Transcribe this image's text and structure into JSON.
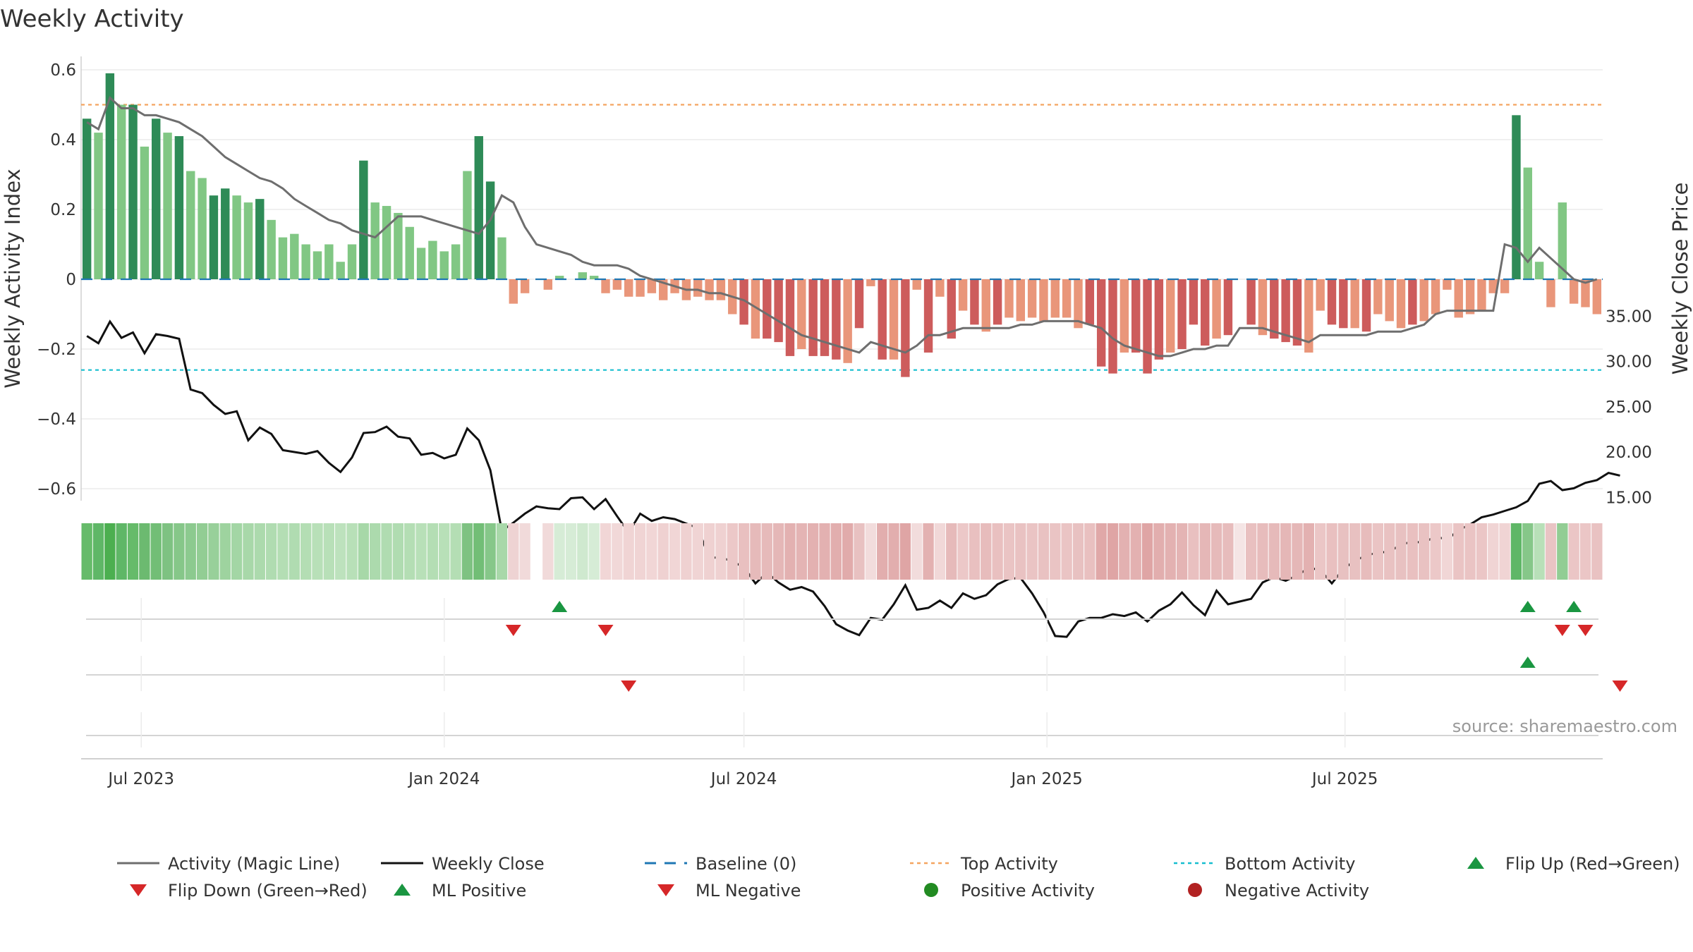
{
  "chart_data": {
    "type": "bar",
    "title": "Weekly Activity",
    "source": "source: sharemaestro.com",
    "y_left": {
      "label": "Weekly Activity Index",
      "range": [
        -0.64,
        0.62
      ],
      "ticks": [
        -0.6,
        -0.4,
        -0.2,
        0,
        0.2,
        0.4,
        0.6
      ],
      "tick_labels": [
        "−0.6",
        "−0.4",
        "−0.2",
        "0",
        "0.2",
        "0.4",
        "0.6"
      ]
    },
    "y_right": {
      "label": "Weekly Close Price",
      "range": [
        11.5,
        35.5
      ],
      "ticks": [
        15,
        20,
        25,
        30,
        35
      ],
      "tick_labels": [
        "15.00",
        "20.00",
        "25.00",
        "30.00",
        "35.00"
      ]
    },
    "x_ticks": [
      {
        "date": "2023-07-01",
        "label": "Jul 2023"
      },
      {
        "date": "2024-01-01",
        "label": "Jan 2024"
      },
      {
        "date": "2024-07-01",
        "label": "Jul 2024"
      },
      {
        "date": "2025-01-01",
        "label": "Jan 2025"
      },
      {
        "date": "2025-07-01",
        "label": "Jul 2025"
      }
    ],
    "first_week": "2023-05-29",
    "levels": {
      "baseline": 0,
      "top": 0.5,
      "bottom": -0.26
    },
    "activity": [
      0.46,
      0.42,
      0.59,
      0.5,
      0.5,
      0.38,
      0.46,
      0.42,
      0.41,
      0.31,
      0.29,
      0.24,
      0.26,
      0.24,
      0.22,
      0.23,
      0.17,
      0.12,
      0.13,
      0.1,
      0.08,
      0.1,
      0.05,
      0.1,
      0.34,
      0.22,
      0.21,
      0.19,
      0.15,
      0.09,
      0.11,
      0.08,
      0.1,
      0.31,
      0.41,
      0.28,
      0.12,
      -0.07,
      -0.04,
      0,
      -0.03,
      0.01,
      0,
      0.02,
      0.01,
      -0.04,
      -0.03,
      -0.05,
      -0.05,
      -0.04,
      -0.06,
      -0.04,
      -0.06,
      -0.05,
      -0.06,
      -0.06,
      -0.1,
      -0.13,
      -0.17,
      -0.17,
      -0.18,
      -0.22,
      -0.2,
      -0.22,
      -0.22,
      -0.23,
      -0.24,
      -0.14,
      -0.02,
      -0.23,
      -0.23,
      -0.28,
      -0.03,
      -0.21,
      -0.05,
      -0.17,
      -0.09,
      -0.13,
      -0.15,
      -0.13,
      -0.11,
      -0.12,
      -0.11,
      -0.12,
      -0.11,
      -0.11,
      -0.14,
      -0.13,
      -0.25,
      -0.27,
      -0.21,
      -0.21,
      -0.27,
      -0.23,
      -0.21,
      -0.2,
      -0.13,
      -0.19,
      -0.17,
      -0.16,
      0,
      -0.13,
      -0.16,
      -0.17,
      -0.18,
      -0.19,
      -0.21,
      -0.09,
      -0.13,
      -0.14,
      -0.14,
      -0.15,
      -0.1,
      -0.12,
      -0.14,
      -0.13,
      -0.12,
      -0.1,
      -0.03,
      -0.11,
      -0.1,
      -0.09,
      -0.04,
      -0.04,
      0.47,
      0.32,
      0.05,
      -0.08,
      0.22,
      -0.07,
      -0.08,
      -0.1
    ],
    "magic_line": [
      0.45,
      0.43,
      0.52,
      0.49,
      0.49,
      0.47,
      0.47,
      0.46,
      0.45,
      0.43,
      0.41,
      0.38,
      0.35,
      0.33,
      0.31,
      0.29,
      0.28,
      0.26,
      0.23,
      0.21,
      0.19,
      0.17,
      0.16,
      0.14,
      0.13,
      0.12,
      0.15,
      0.18,
      0.18,
      0.18,
      0.17,
      0.16,
      0.15,
      0.14,
      0.13,
      0.17,
      0.24,
      0.22,
      0.15,
      0.1,
      0.09,
      0.08,
      0.07,
      0.05,
      0.04,
      0.04,
      0.04,
      0.03,
      0.01,
      0,
      -0.01,
      -0.02,
      -0.03,
      -0.03,
      -0.04,
      -0.04,
      -0.05,
      -0.06,
      -0.08,
      -0.1,
      -0.12,
      -0.14,
      -0.16,
      -0.17,
      -0.18,
      -0.19,
      -0.2,
      -0.21,
      -0.18,
      -0.19,
      -0.2,
      -0.21,
      -0.19,
      -0.16,
      -0.16,
      -0.15,
      -0.14,
      -0.14,
      -0.14,
      -0.14,
      -0.14,
      -0.13,
      -0.13,
      -0.12,
      -0.12,
      -0.12,
      -0.12,
      -0.13,
      -0.14,
      -0.17,
      -0.19,
      -0.2,
      -0.21,
      -0.22,
      -0.22,
      -0.21,
      -0.2,
      -0.2,
      -0.19,
      -0.19,
      -0.14,
      -0.14,
      -0.14,
      -0.15,
      -0.16,
      -0.17,
      -0.18,
      -0.16,
      -0.16,
      -0.16,
      -0.16,
      -0.16,
      -0.15,
      -0.15,
      -0.15,
      -0.14,
      -0.13,
      -0.1,
      -0.09,
      -0.09,
      -0.09,
      -0.09,
      -0.09,
      0.1,
      0.09,
      0.05,
      0.09,
      0.06,
      0.03,
      0,
      -0.01,
      0
    ],
    "weekly_close": [
      32.8,
      32.0,
      34.4,
      32.6,
      33.2,
      30.9,
      33.0,
      32.8,
      32.5,
      26.9,
      26.5,
      25.2,
      24.2,
      24.5,
      21.3,
      22.7,
      22.0,
      20.2,
      20.0,
      19.8,
      20.1,
      18.8,
      17.8,
      19.4,
      22.1,
      22.2,
      22.8,
      21.7,
      21.5,
      19.7,
      19.9,
      19.3,
      19.7,
      22.6,
      21.3,
      18.0,
      11.3,
      12.2,
      13.2,
      14.0,
      13.8,
      13.7,
      14.9,
      15.0,
      13.7,
      14.8,
      12.9,
      11.1,
      13.2,
      12.4,
      12.8,
      12.6,
      12.1,
      11.6,
      8.3,
      8.4,
      7.9,
      7.3,
      5.5,
      6.7,
      5.6,
      4.8,
      5.1,
      4.6,
      3.0,
      1.0,
      0.3,
      -0.2,
      1.7,
      1.5,
      3.2,
      5.3,
      2.6,
      2.8,
      3.6,
      2.8,
      4.4,
      3.8,
      4.2,
      5.4,
      6.0,
      6.1,
      4.4,
      2.3,
      -0.3,
      -0.4,
      1.3,
      1.7,
      1.7,
      2.1,
      1.9,
      2.3,
      1.3,
      2.5,
      3.2,
      4.5,
      3.1,
      2.0,
      4.7,
      3.2,
      3.5,
      3.8,
      5.6,
      6.2,
      5.8,
      6.4,
      7.2,
      7.0,
      5.5,
      7.1,
      8.0,
      8.6,
      8.9,
      9.0,
      9.8,
      10.1,
      10.0,
      10.7,
      10.3,
      11.4,
      12.0,
      12.8,
      13.1,
      13.5,
      13.9,
      14.6,
      16.5,
      16.8,
      15.8,
      16.0,
      16.6,
      16.9,
      17.7,
      17.4
    ],
    "strip_colors": [
      "#66bb6a",
      "#5fb767",
      "#4caf50",
      "#5fb767",
      "#66bb6a",
      "#6cba70",
      "#72be76",
      "#7ec282",
      "#86c789",
      "#8cca8f",
      "#92cd94",
      "#98d09a",
      "#9ed39f",
      "#a3d6a5",
      "#a8d8a9",
      "#acdaad",
      "#b0dcb1",
      "#b4deb4",
      "#b0dcb1",
      "#b4deb4",
      "#b8e0b8",
      "#b8e0b8",
      "#bde2bd",
      "#b8e0b8",
      "#a7d8a8",
      "#acdaad",
      "#b0dcb1",
      "#b0dcb1",
      "#b4deb4",
      "#b8e0b8",
      "#b4deb4",
      "#b8e0b8",
      "#b4deb4",
      "#7ec282",
      "#72be76",
      "#86c789",
      "#a8d8a9",
      "#eed3d3",
      "#f1dada",
      "#ffffff",
      "#f1dada",
      "#d6ecd6",
      "#d6ecd6",
      "#cfe9cf",
      "#d6ecd6",
      "#f1d6d6",
      "#f1d8d8",
      "#f0d4d4",
      "#f0d4d4",
      "#f1d6d6",
      "#efd1d1",
      "#f1d6d6",
      "#efd1d1",
      "#f0d4d4",
      "#efd1d1",
      "#efd1d1",
      "#ecc8c8",
      "#e9c0c0",
      "#e6baba",
      "#e6baba",
      "#e5b7b7",
      "#e3b1b1",
      "#e4b4b4",
      "#e3b1b1",
      "#e3b1b1",
      "#e2aeae",
      "#e1abab",
      "#e8c1c1",
      "#f2dcdc",
      "#e2aeae",
      "#e2aeae",
      "#dfa5a5",
      "#f2dcdc",
      "#e3b1b1",
      "#f1d8d8",
      "#e6baba",
      "#ecc8c8",
      "#e9c0c0",
      "#e7bcbc",
      "#e9c0c0",
      "#eac4c4",
      "#e9c2c2",
      "#eac4c4",
      "#e9c2c2",
      "#eac4c4",
      "#eac4c4",
      "#e8c1c1",
      "#e9c0c0",
      "#e0a8a8",
      "#dfa5a5",
      "#e3b1b1",
      "#e3b1b1",
      "#dfa5a5",
      "#e2aeae",
      "#e3b1b1",
      "#e4b4b4",
      "#e9c0c0",
      "#e5b7b7",
      "#e6baba",
      "#e7bcbc",
      "#f5e5e5",
      "#e9c0c0",
      "#e7bcbc",
      "#e6baba",
      "#e5b7b7",
      "#e5b7b7",
      "#e3b1b1",
      "#ebc6c6",
      "#e9c0c0",
      "#e8c1c1",
      "#e8c1c1",
      "#e7bcbc",
      "#eac4c4",
      "#e9c2c2",
      "#e8c1c1",
      "#e9c0c0",
      "#e9c2c2",
      "#ecc8c8",
      "#f1d6d6",
      "#eac4c4",
      "#eac4c4",
      "#ebc6c6",
      "#f0d4d4",
      "#f0d4d4",
      "#5fb767",
      "#86c789",
      "#b8e0b8",
      "#e9c4c4",
      "#92cd94",
      "#ebc6c6",
      "#ebc6c6",
      "#e9c2c2"
    ],
    "flip_markers": {
      "row1_up": [
        41,
        125,
        129
      ],
      "row1_down": [
        37,
        45,
        128,
        130
      ],
      "row2_up": [
        125
      ],
      "row2_down": [
        47,
        133
      ]
    },
    "legend": [
      {
        "label": "Activity (Magic Line)",
        "icon": "line-gray"
      },
      {
        "label": "Weekly Close",
        "icon": "line-black"
      },
      {
        "label": "Baseline (0)",
        "icon": "dash-blue"
      },
      {
        "label": "Top Activity",
        "icon": "dot-orange"
      },
      {
        "label": "Bottom Activity",
        "icon": "dot-cyan"
      },
      {
        "label": "Flip Up (Red→Green)",
        "icon": "triangle-up-green"
      },
      {
        "label": "Flip Down (Green→Red)",
        "icon": "triangle-down-red"
      },
      {
        "label": "ML Positive",
        "icon": "triangle-up-green"
      },
      {
        "label": "ML Negative",
        "icon": "triangle-down-red"
      },
      {
        "label": "Positive Activity",
        "icon": "circle-green"
      },
      {
        "label": "Negative Activity",
        "icon": "circle-red"
      }
    ],
    "colors": {
      "pos_strong": "#2e8b57",
      "pos_light": "#81c784",
      "neg_strong": "#cd5c5c",
      "neg_light": "#e9967a",
      "magic_line": "#6e6e6e",
      "close": "#111111",
      "baseline": "#1f77b4",
      "top": "#f4a460",
      "bottom": "#17becf",
      "flip_up": "#1a9641",
      "flip_down": "#d62728",
      "pos_dot": "#228b22",
      "neg_dot": "#b22222"
    }
  }
}
